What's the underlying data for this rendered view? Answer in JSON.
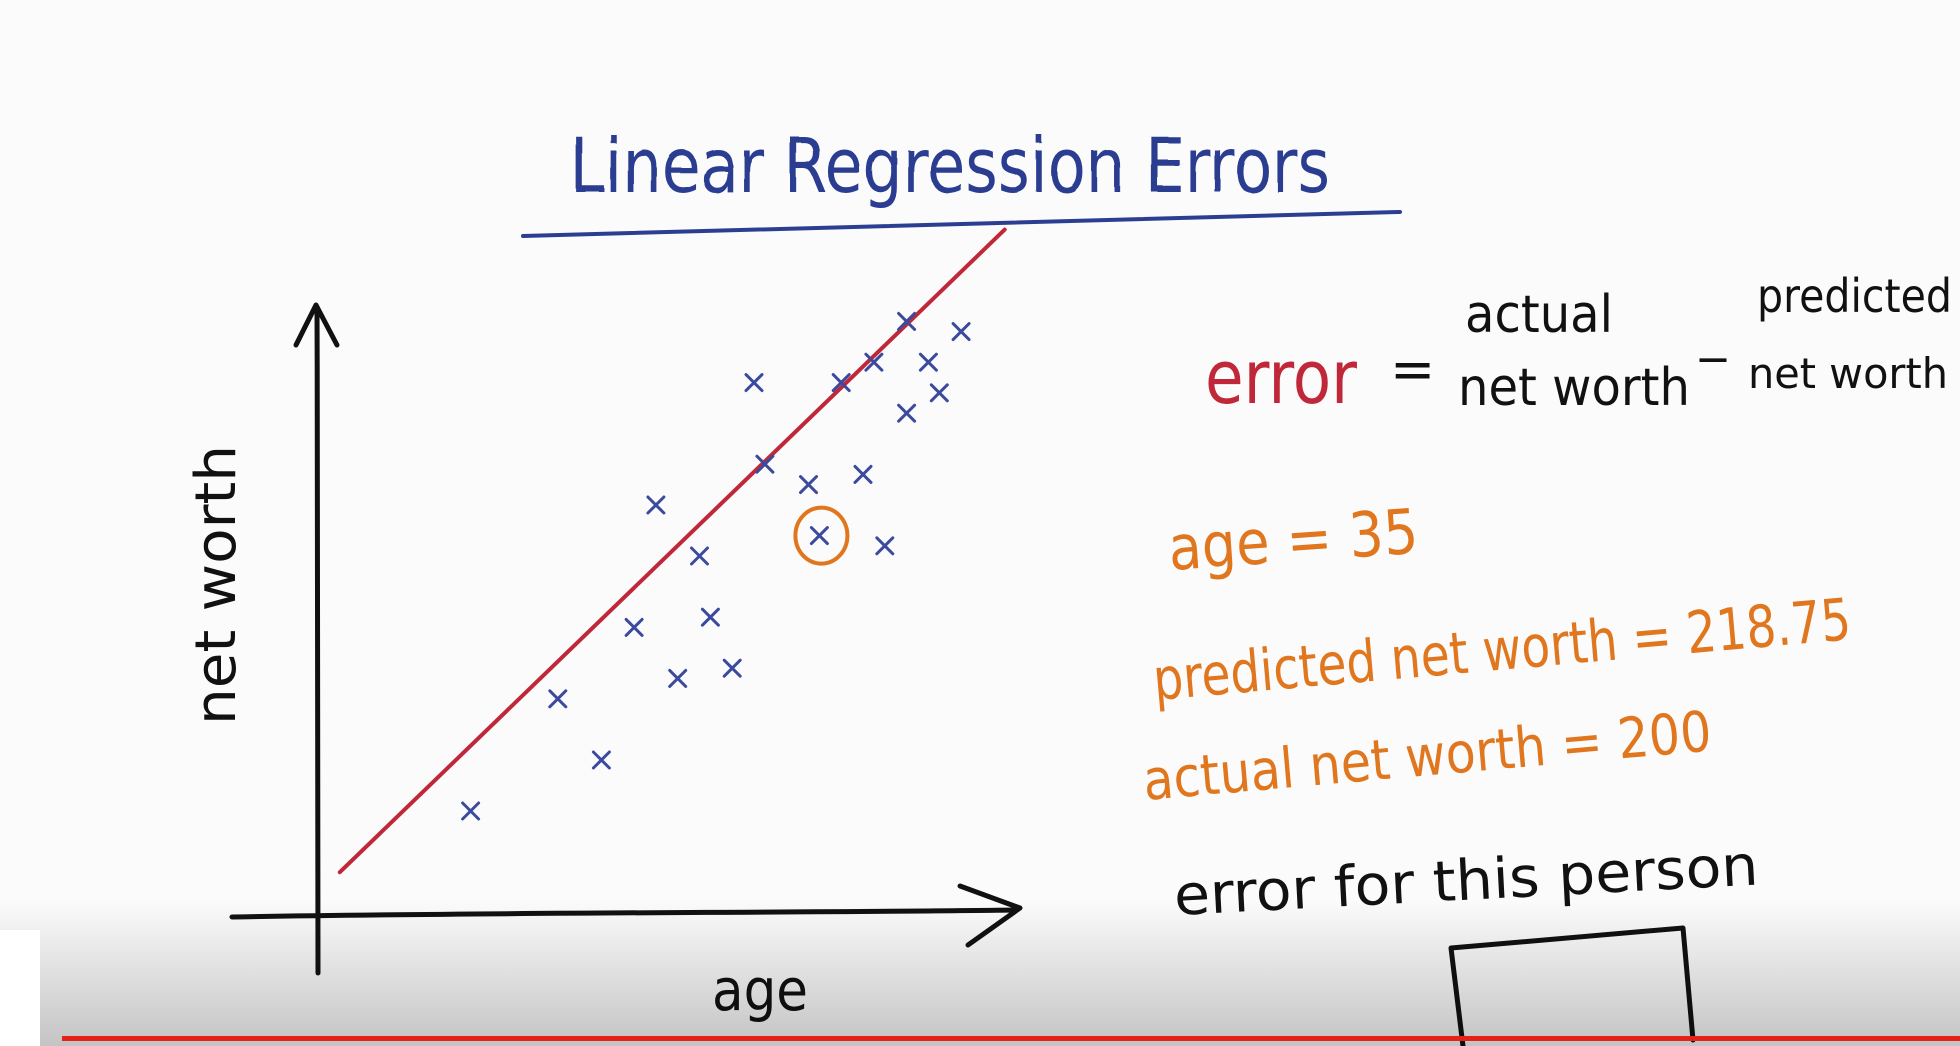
{
  "slide": {
    "title": "Linear Regression Errors",
    "y_axis_label": "net worth",
    "x_axis_label": "age"
  },
  "formula": {
    "lhs": "error",
    "equals": "=",
    "actual_top": "actual",
    "actual_bottom": "net worth",
    "minus": "_",
    "predicted_top": "predicted",
    "predicted_bottom": "net worth"
  },
  "example": {
    "age_line": "age = 35",
    "predicted_line": "predicted net worth = 218.75",
    "actual_line": "actual net worth = 200",
    "question": "error for this person"
  },
  "player": {
    "progress_percent": 100
  },
  "colors": {
    "title_ink": "#2c3e91",
    "point_ink": "#3b4a9c",
    "line_ink": "#c0283a",
    "orange_ink": "#e0761e",
    "black_ink": "#111111",
    "progress": "#e62117"
  },
  "chart_data": {
    "type": "scatter",
    "xlabel": "age",
    "ylabel": "net worth",
    "points": [
      {
        "x": 14,
        "y": 10,
        "marker": "x"
      },
      {
        "x": 22,
        "y": 21,
        "marker": "x"
      },
      {
        "x": 26,
        "y": 15,
        "marker": "x"
      },
      {
        "x": 29,
        "y": 28,
        "marker": "x"
      },
      {
        "x": 33,
        "y": 23,
        "marker": "x"
      },
      {
        "x": 36,
        "y": 29,
        "marker": "x"
      },
      {
        "x": 38,
        "y": 24,
        "marker": "x"
      },
      {
        "x": 35,
        "y": 35,
        "marker": "x"
      },
      {
        "x": 31,
        "y": 40,
        "marker": "x"
      },
      {
        "x": 41,
        "y": 44,
        "marker": "x"
      },
      {
        "x": 45,
        "y": 42,
        "marker": "x"
      },
      {
        "x": 40,
        "y": 52,
        "marker": "x"
      },
      {
        "x": 48,
        "y": 52,
        "marker": "x"
      },
      {
        "x": 51,
        "y": 54,
        "marker": "x"
      },
      {
        "x": 56,
        "y": 54,
        "marker": "x"
      },
      {
        "x": 54,
        "y": 58,
        "marker": "x"
      },
      {
        "x": 59,
        "y": 57,
        "marker": "x"
      },
      {
        "x": 54,
        "y": 49,
        "marker": "x"
      },
      {
        "x": 57,
        "y": 51,
        "marker": "x"
      },
      {
        "x": 50,
        "y": 43,
        "marker": "x"
      },
      {
        "x": 46,
        "y": 37,
        "marker": "x"
      },
      {
        "x": 52,
        "y": 36,
        "marker": "x"
      },
      {
        "x": 46,
        "y": 37,
        "marker": "circle"
      }
    ],
    "regression_line": {
      "x": [
        2,
        63
      ],
      "y": [
        4,
        67
      ]
    }
  }
}
